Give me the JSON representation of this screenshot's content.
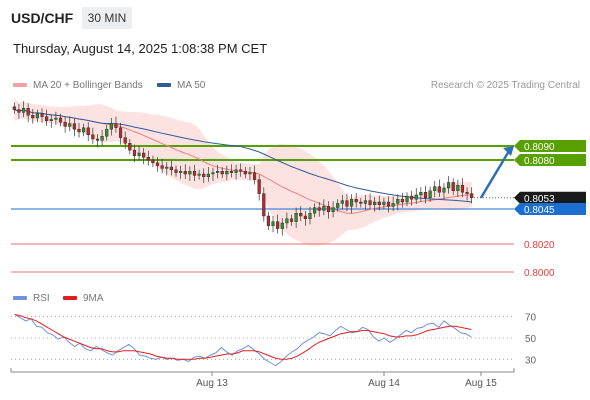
{
  "header": {
    "symbol": "USD/CHF",
    "timeframe": "30 MIN",
    "datetime": "Thursday, August 14, 2025 1:08:38 PM CET"
  },
  "legend": {
    "ma20_label": "MA 20 + Bollinger Bands",
    "ma20_color": "#f08080",
    "ma50_label": "MA 50",
    "ma50_color": "#2e5c9a",
    "credit": "Research © 2025 Trading Central"
  },
  "rsi_legend": {
    "rsi_label": "RSI",
    "rsi_color": "#5b7fd6",
    "ma_label": "9MA",
    "ma_color": "#e02020"
  },
  "chart_data": [
    {
      "type": "candlestick",
      "title": "USD/CHF 30 MIN",
      "x_ticks": [
        "Aug 13",
        "Aug 14",
        "Aug 15"
      ],
      "ylim": [
        0.799,
        0.813
      ],
      "close": [
        0.8116,
        0.8114,
        0.8117,
        0.8112,
        0.811,
        0.8113,
        0.8111,
        0.8108,
        0.8109,
        0.811,
        0.8107,
        0.8104,
        0.8106,
        0.8102,
        0.81,
        0.8103,
        0.8098,
        0.8095,
        0.8094,
        0.8097,
        0.8102,
        0.8106,
        0.8103,
        0.8096,
        0.8092,
        0.8087,
        0.8083,
        0.8085,
        0.8082,
        0.808,
        0.8078,
        0.8076,
        0.8074,
        0.8075,
        0.8073,
        0.8071,
        0.8072,
        0.807,
        0.8072,
        0.8069,
        0.807,
        0.8068,
        0.807,
        0.8071,
        0.8072,
        0.807,
        0.8072,
        0.8071,
        0.8073,
        0.8072,
        0.807,
        0.8071,
        0.8066,
        0.8056,
        0.804,
        0.8033,
        0.8036,
        0.8031,
        0.8035,
        0.8038,
        0.8036,
        0.8042,
        0.804,
        0.8038,
        0.8042,
        0.8046,
        0.8044,
        0.8047,
        0.8043,
        0.8046,
        0.8049,
        0.8051,
        0.8047,
        0.8052,
        0.805,
        0.8049,
        0.8051,
        0.8048,
        0.805,
        0.8048,
        0.805,
        0.8047,
        0.8049,
        0.8052,
        0.805,
        0.8054,
        0.8052,
        0.8055,
        0.8057,
        0.8053,
        0.8058,
        0.8061,
        0.8057,
        0.806,
        0.8064,
        0.8058,
        0.8062,
        0.8057,
        0.8056,
        0.8053
      ],
      "support_resistance": [
        {
          "value": 0.809,
          "label": "0.8090",
          "color": "#58a000"
        },
        {
          "value": 0.808,
          "label": "0.8080",
          "color": "#58a000"
        },
        {
          "value": 0.8053,
          "label": "0.8053",
          "color": "#1a1a1a"
        },
        {
          "value": 0.8045,
          "label": "0.8045",
          "color": "#1a6fd0"
        },
        {
          "value": 0.802,
          "label": "0.8020",
          "color": "#e04040"
        },
        {
          "value": 0.8,
          "label": "0.8000",
          "color": "#e04040"
        }
      ],
      "target_arrow": {
        "from": 0.8053,
        "to": 0.809
      }
    },
    {
      "type": "line",
      "title": "RSI",
      "ylim": [
        20,
        80
      ],
      "levels": [
        70,
        50,
        30
      ],
      "series": [
        {
          "name": "RSI",
          "values": [
            72,
            69,
            66,
            68,
            61,
            60,
            55,
            53,
            49,
            51,
            46,
            42,
            45,
            40,
            38,
            42,
            39,
            36,
            34,
            38,
            41,
            44,
            40,
            34,
            33,
            31,
            30,
            32,
            30,
            31,
            29,
            30,
            28,
            32,
            33,
            31,
            34,
            36,
            41,
            37,
            34,
            38,
            40,
            43,
            39,
            35,
            30,
            27,
            24,
            28,
            33,
            37,
            40,
            45,
            48,
            51,
            55,
            54,
            52,
            57,
            61,
            58,
            55,
            56,
            60,
            58,
            51,
            47,
            50,
            46,
            49,
            53,
            57,
            55,
            59,
            60,
            63,
            64,
            60,
            66,
            62,
            59,
            55,
            54,
            51
          ]
        },
        {
          "name": "9MA",
          "values": [
            72,
            71,
            69,
            68,
            66,
            63,
            60,
            57,
            54,
            51,
            49,
            47,
            45,
            43,
            41,
            40,
            40,
            38,
            37,
            37,
            38,
            38,
            38,
            37,
            36,
            35,
            33,
            32,
            31,
            31,
            30,
            30,
            30,
            30,
            31,
            31,
            32,
            33,
            34,
            35,
            35,
            36,
            38,
            38,
            38,
            37,
            35,
            33,
            31,
            30,
            30,
            31,
            33,
            36,
            39,
            43,
            46,
            48,
            50,
            52,
            54,
            55,
            56,
            56,
            57,
            57,
            56,
            55,
            54,
            52,
            51,
            51,
            52,
            52,
            53,
            55,
            57,
            58,
            59,
            60,
            61,
            61,
            60,
            59,
            58
          ]
        }
      ],
      "x_ticks": [
        "Aug 13",
        "Aug 14",
        "Aug 15"
      ]
    }
  ]
}
